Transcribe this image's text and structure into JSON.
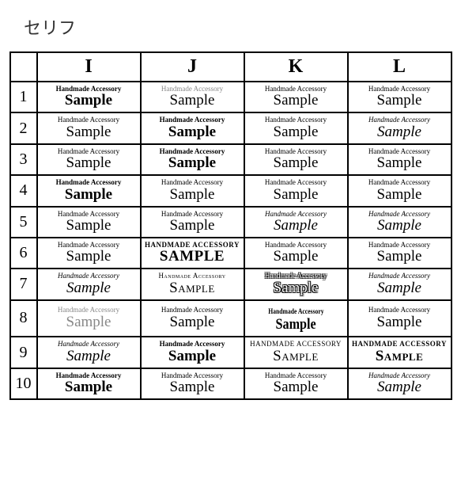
{
  "title": "セリフ",
  "columns": [
    "I",
    "J",
    "K",
    "L"
  ],
  "rows": [
    "1",
    "2",
    "3",
    "4",
    "5",
    "6",
    "7",
    "8",
    "9",
    "10"
  ],
  "text": {
    "acc": "Handmade Accessory",
    "samp": "Sample"
  },
  "grid": [
    [
      {
        "accCls": "f-tnr w-bold",
        "sampCls": "f-tnr w-bold",
        "samp": "Sample"
      },
      {
        "accCls": "f-tnr gray",
        "sampCls": "f-tnr",
        "samp": "Sample"
      },
      {
        "accCls": "f-tnr",
        "sampCls": "f-tnr",
        "samp": "Sample"
      },
      {
        "accCls": "f-tnr",
        "sampCls": "f-tnr",
        "samp": "Sample"
      }
    ],
    [
      {
        "accCls": "f-georgia",
        "sampCls": "f-georgia",
        "samp": "Sample"
      },
      {
        "accCls": "f-georgia w-bold",
        "sampCls": "f-georgia w-bold",
        "samp": "Sample"
      },
      {
        "accCls": "f-georgia",
        "sampCls": "f-georgia",
        "samp": "Sample"
      },
      {
        "accCls": "f-georgia italic",
        "sampCls": "f-georgia italic",
        "samp": "Sample"
      }
    ],
    [
      {
        "accCls": "f-garamond",
        "sampCls": "f-garamond",
        "samp": "Sample"
      },
      {
        "accCls": "f-tnr w-900",
        "sampCls": "f-tnr w-900",
        "samp": "Sample"
      },
      {
        "accCls": "f-didot",
        "sampCls": "f-didot",
        "samp": "Sample"
      },
      {
        "accCls": "f-garamond",
        "sampCls": "f-garamond",
        "samp": "Sample"
      }
    ],
    [
      {
        "accCls": "f-tnr w-bold",
        "sampCls": "f-tnr w-bold",
        "samp": "Sample"
      },
      {
        "accCls": "f-book",
        "sampCls": "f-book",
        "samp": "Sample"
      },
      {
        "accCls": "f-didot",
        "sampCls": "f-didot",
        "samp": "Sample"
      },
      {
        "accCls": "fancy",
        "sampCls": "fancy",
        "samp": "Sample"
      }
    ],
    [
      {
        "accCls": "f-tnr",
        "sampCls": "fancy",
        "samp": "Sample"
      },
      {
        "accCls": "f-palatino",
        "sampCls": "f-palatino",
        "samp": "Sample"
      },
      {
        "accCls": "f-baskerville italic",
        "sampCls": "f-baskerville italic",
        "samp": "Sample"
      },
      {
        "accCls": "f-tnr italic",
        "sampCls": "f-tnr italic",
        "samp": "Sample"
      }
    ],
    [
      {
        "accCls": "f-tnr",
        "sampCls": "f-tnr",
        "samp": "Sample"
      },
      {
        "accCls": "f-tnr w-900 upper",
        "sampCls": "f-tnr w-900 upper",
        "acc": "HANDMADE ACCESSORY",
        "samp": "SAMPLE"
      },
      {
        "accCls": "f-garamond",
        "sampCls": "f-garamond",
        "samp": "Sample"
      },
      {
        "accCls": "f-palatino",
        "sampCls": "f-palatino",
        "samp": "Sample"
      }
    ],
    [
      {
        "accCls": "script italic",
        "sampCls": "script italic",
        "samp": "Sample"
      },
      {
        "accCls": "f-tnr sc",
        "sampCls": "f-tnr sc",
        "acc": "Handmade Accessory",
        "samp": "Sample"
      },
      {
        "accCls": "f-didot engraved",
        "sampCls": "f-didot engraved",
        "samp": "Sample"
      },
      {
        "accCls": "f-book italic",
        "sampCls": "f-book italic",
        "samp": "Sample"
      }
    ],
    [
      {
        "accCls": "f-tnr gray",
        "sampCls": "f-tnr gray",
        "samp": "Sample"
      },
      {
        "accCls": "f-garamond",
        "sampCls": "f-garamond",
        "samp": "Sample"
      },
      {
        "accCls": "f-tnr w-bold condensed",
        "sampCls": "f-tnr w-bold condensed",
        "samp": "Sample"
      },
      {
        "accCls": "f-baskerville",
        "sampCls": "f-baskerville",
        "samp": "Sample"
      }
    ],
    [
      {
        "accCls": "script italic",
        "sampCls": "script italic",
        "samp": "Sample"
      },
      {
        "accCls": "f-georgia w-bold",
        "sampCls": "f-georgia w-bold",
        "samp": "Sample"
      },
      {
        "accCls": "f-didot sc upper",
        "sampCls": "f-didot sc",
        "acc": "HANDMADE ACCESSORY",
        "samp": "Sample"
      },
      {
        "accCls": "f-didot w-bold sc upper",
        "sampCls": "f-didot w-bold sc",
        "acc": "HANDMADE ACCESSORY",
        "samp": "Sample"
      }
    ],
    [
      {
        "accCls": "f-tnr w-bold",
        "sampCls": "f-tnr w-bold",
        "samp": "Sample"
      },
      {
        "accCls": "f-palatino",
        "sampCls": "f-palatino",
        "samp": "Sample"
      },
      {
        "accCls": "fancy",
        "sampCls": "fancy",
        "samp": "Sample"
      },
      {
        "accCls": "f-garamond italic",
        "sampCls": "f-garamond italic",
        "samp": "Sample"
      }
    ]
  ]
}
